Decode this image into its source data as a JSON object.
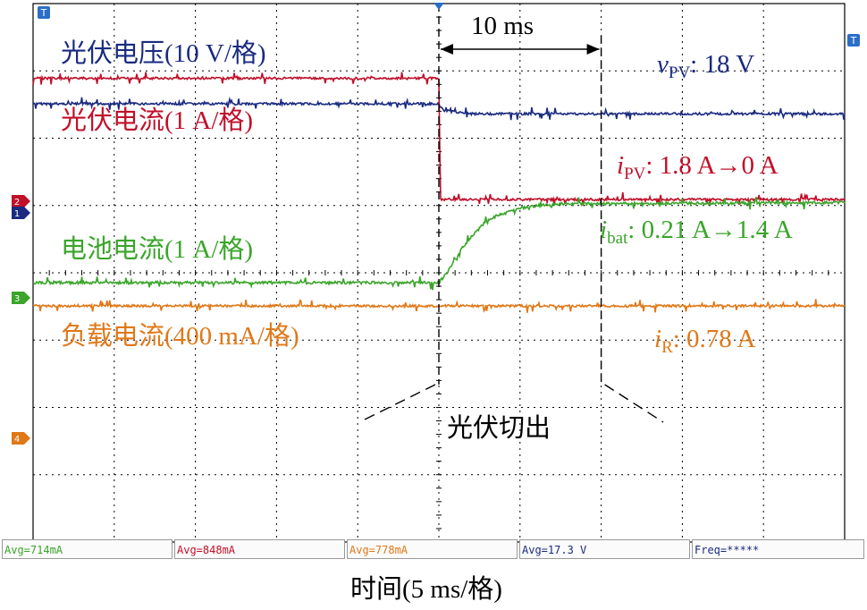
{
  "labels": {
    "pv_voltage": "光伏电压(10 V/格)",
    "pv_current": "光伏电流(1 A/格)",
    "bat_current": "电池电流(1 A/格)",
    "load_current": "负载电流(400 mA/格)",
    "time_span": "10 ms",
    "event": "光伏切出",
    "xaxis": "时间(5 ms/格)"
  },
  "annotations": {
    "vpv": {
      "sym": "v",
      "sub": "PV",
      "text": ": 18 V"
    },
    "ipv": {
      "sym": "i",
      "sub": "PV",
      "text": ": 1.8 A→0 A"
    },
    "ibat": {
      "sym": "i",
      "sub": "bat",
      "text": ": 0.21 A→1.4 A"
    },
    "ir": {
      "sym": "i",
      "sub": "R",
      "text": ": 0.78 A"
    }
  },
  "channels": {
    "ch1": "1",
    "ch2": "2",
    "ch3": "3",
    "ch4": "4",
    "trigger_marker": "T"
  },
  "measurements": [
    "Avg=714mA",
    "Avg=848mA",
    "Avg=778mA",
    "Avg=17.3 V",
    "Freq=*****"
  ],
  "colors": {
    "pv_voltage": "#1a2a80",
    "pv_current": "#c0102a",
    "bat_current": "#3aa52a",
    "load_current": "#e07818",
    "grid": "#000000"
  },
  "chart_data": {
    "type": "line",
    "xlabel": "时间(5 ms/格)",
    "x_unit": "ms",
    "xlim": [
      -25,
      25
    ],
    "event_time": 0,
    "grid": true,
    "series": [
      {
        "name": "光伏电压(10 V/格)",
        "key": "pv_voltage",
        "unit": "V",
        "points": [
          [
            -25,
            18
          ],
          [
            0,
            18
          ],
          [
            0.3,
            17.0
          ],
          [
            2,
            16.5
          ],
          [
            25,
            16.5
          ]
        ]
      },
      {
        "name": "光伏电流(1 A/格)",
        "key": "pv_current",
        "unit": "A",
        "points": [
          [
            -25,
            1.8
          ],
          [
            0,
            1.8
          ],
          [
            0.1,
            0
          ],
          [
            25,
            0
          ]
        ]
      },
      {
        "name": "电池电流(1 A/格)",
        "key": "bat_current",
        "unit": "A",
        "points": [
          [
            -25,
            0.21
          ],
          [
            0,
            0.21
          ],
          [
            0.5,
            0.35
          ],
          [
            1.5,
            0.75
          ],
          [
            3,
            1.15
          ],
          [
            5,
            1.32
          ],
          [
            7,
            1.38
          ],
          [
            25,
            1.4
          ]
        ]
      },
      {
        "name": "负载电流(400 mA/格)",
        "key": "load_current",
        "unit": "A",
        "points": [
          [
            -25,
            0.78
          ],
          [
            25,
            0.78
          ]
        ]
      }
    ]
  }
}
